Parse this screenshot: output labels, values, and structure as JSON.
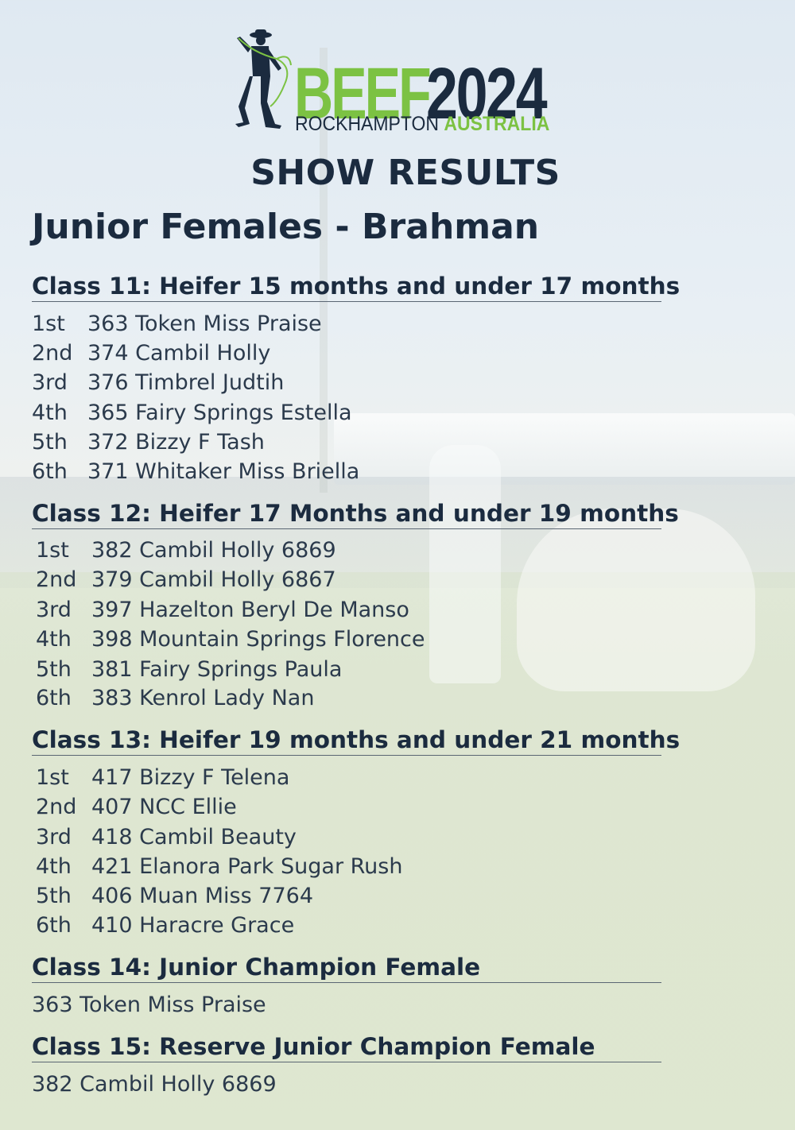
{
  "logo": {
    "beef": "BEEF",
    "year": "2024",
    "location_primary": "ROCKHAMPTON",
    "location_secondary": "AUSTRALIA",
    "icon": "cowboy-with-lasso-icon",
    "colors": {
      "green": "#7cc243",
      "navy": "#1b2b3f"
    }
  },
  "title": "SHOW RESULTS",
  "section": "Junior Females - Brahman",
  "classes": [
    {
      "heading": "Class 11: Heifer 15 months and under 17 months",
      "results": [
        {
          "place": "1st",
          "entry": "363 Token Miss Praise"
        },
        {
          "place": "2nd",
          "entry": "374 Cambil Holly"
        },
        {
          "place": "3rd",
          "entry": "376 Timbrel Judtih"
        },
        {
          "place": "4th",
          "entry": "365 Fairy Springs Estella"
        },
        {
          "place": "5th",
          "entry": "372 Bizzy F Tash"
        },
        {
          "place": "6th",
          "entry": "371 Whitaker Miss Briella"
        }
      ]
    },
    {
      "heading": "Class 12: Heifer 17 Months and under 19 months",
      "results": [
        {
          "place": "1st",
          "entry": "382 Cambil Holly 6869"
        },
        {
          "place": "2nd",
          "entry": "379 Cambil Holly 6867"
        },
        {
          "place": "3rd",
          "entry": "397 Hazelton Beryl De Manso"
        },
        {
          "place": "4th",
          "entry": "398 Mountain Springs Florence"
        },
        {
          "place": "5th",
          "entry": "381 Fairy Springs Paula"
        },
        {
          "place": "6th",
          "entry": "383 Kenrol Lady Nan"
        }
      ]
    },
    {
      "heading": "Class 13: Heifer 19 months and under 21 months",
      "results": [
        {
          "place": "1st",
          "entry": "417 Bizzy F Telena"
        },
        {
          "place": "2nd",
          "entry": "407 NCC Ellie"
        },
        {
          "place": "3rd",
          "entry": "418 Cambil Beauty"
        },
        {
          "place": "4th",
          "entry": "421 Elanora Park Sugar Rush"
        },
        {
          "place": "5th",
          "entry": "406 Muan Miss 7764"
        },
        {
          "place": "6th",
          "entry": "410 Haracre Grace"
        }
      ]
    },
    {
      "heading": "Class 14: Junior Champion Female",
      "winner": "363 Token Miss Praise"
    },
    {
      "heading": "Class 15: Reserve Junior Champion Female",
      "winner": "382 Cambil Holly 6869"
    }
  ]
}
